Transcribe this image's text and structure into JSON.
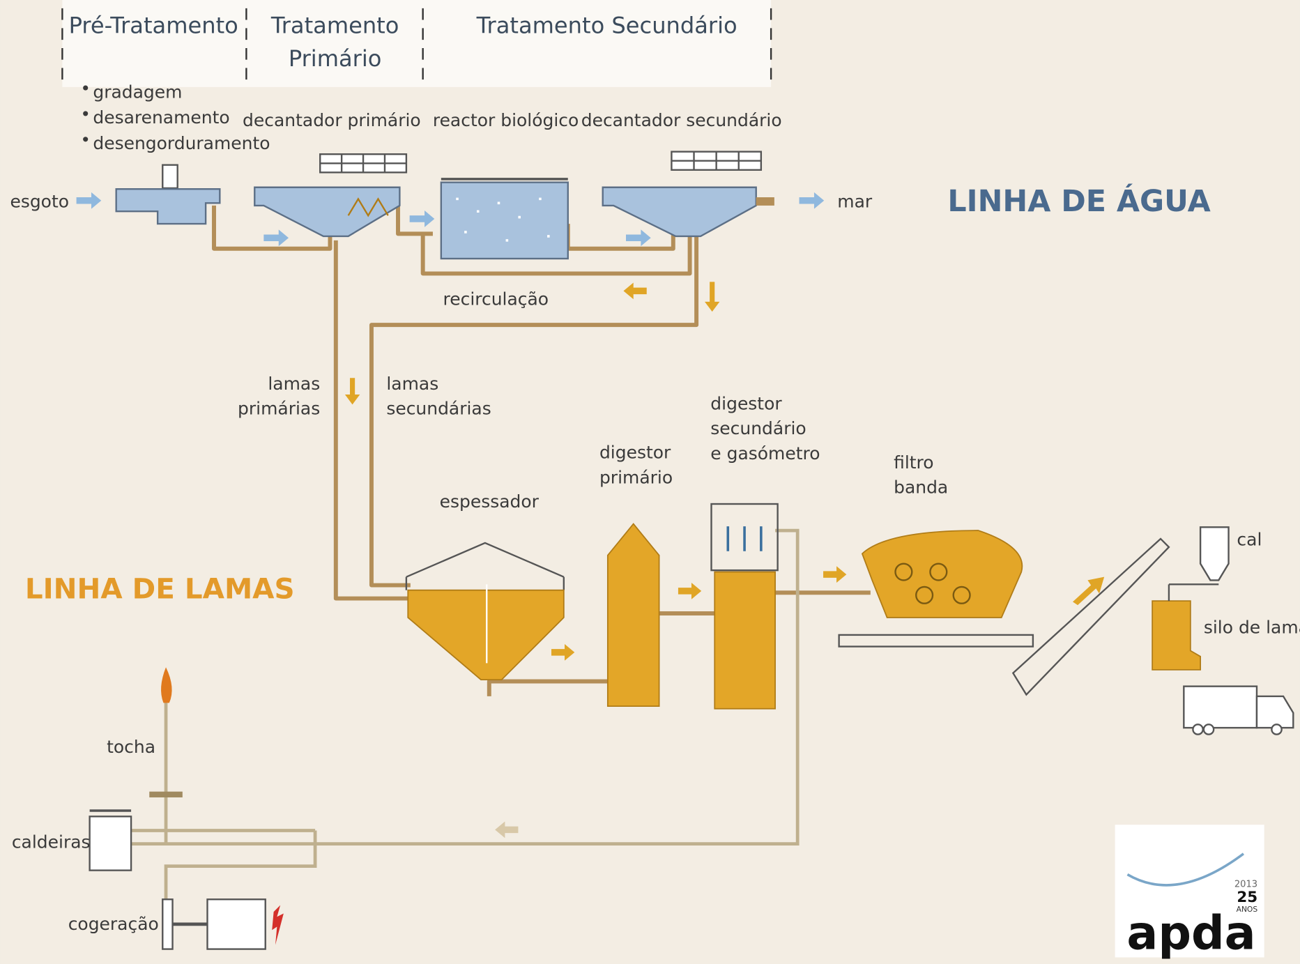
{
  "header": {
    "stages": [
      {
        "lines": [
          "Pré-Tratamento"
        ]
      },
      {
        "lines": [
          "Tratamento",
          "Primário"
        ]
      },
      {
        "lines": [
          "Tratamento Secundário"
        ]
      }
    ]
  },
  "pretreatment_steps": [
    "gradagem",
    "desarenamento",
    "desengorduramento"
  ],
  "water_line": {
    "title": "LINHA DE ÁGUA",
    "input": "esgoto",
    "output": "mar",
    "units": [
      "decantador primário",
      "reactor biológico",
      "decantador secundário"
    ],
    "recirculation": "recirculação"
  },
  "sludge_line": {
    "title": "LINHA DE LAMAS",
    "flows": [
      {
        "lines": [
          "lamas",
          "primárias"
        ]
      },
      {
        "lines": [
          "lamas",
          "secundárias"
        ]
      }
    ],
    "units": [
      {
        "lines": [
          "espessador"
        ]
      },
      {
        "lines": [
          "digestor",
          "primário"
        ]
      },
      {
        "lines": [
          "digestor",
          "secundário",
          "e gasómetro"
        ]
      },
      {
        "lines": [
          "filtro",
          "banda"
        ]
      },
      {
        "lines": [
          "cal"
        ]
      },
      {
        "lines": [
          "silo de lamas"
        ]
      }
    ]
  },
  "gas_line": {
    "units": [
      "tocha",
      "caldeiras",
      "cogeração"
    ]
  },
  "logo": {
    "name": "apda",
    "year": "2013",
    "anniversary": "25",
    "anniversary_unit": "ANOS"
  }
}
